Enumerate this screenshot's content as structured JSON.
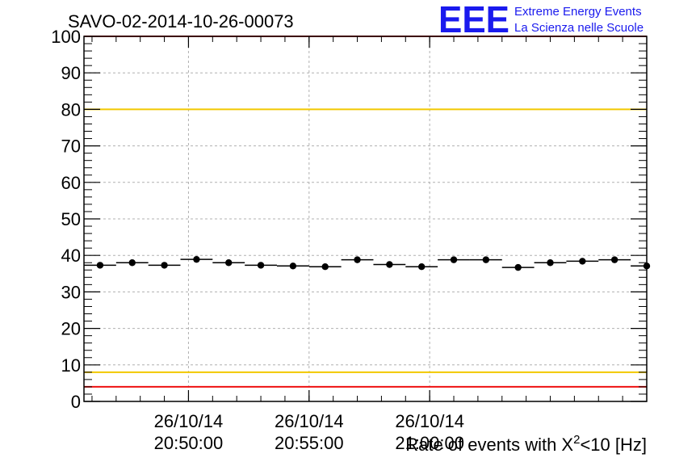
{
  "title": "SAVO-02-2014-10-26-00073",
  "logo": {
    "letters": "EEE",
    "line1": "Extreme Energy Events",
    "line2": "La Scienza nelle Scuole"
  },
  "colors": {
    "logo_blue": "#1a1aee",
    "threshold_red": "#ee1111",
    "threshold_yellow": "#f2c800",
    "grid": "#b0b0b0",
    "markers": "#000000"
  },
  "chart_data": {
    "type": "scatter",
    "title": "SAVO-02-2014-10-26-00073",
    "xlabel_prefix": "Rate of events with X",
    "xlabel_sup": "2",
    "xlabel_suffix": "<10 [Hz]",
    "ylabel": "",
    "ylim": [
      0,
      100
    ],
    "yticks": [
      "0",
      "10",
      "20",
      "30",
      "40",
      "50",
      "60",
      "70",
      "80",
      "90",
      "100"
    ],
    "xlim": [
      "20:45:40",
      "21:09:00"
    ],
    "xticks": [
      {
        "date": "26/10/14",
        "time": "20:50:00",
        "t": "20:50:00"
      },
      {
        "date": "26/10/14",
        "time": "20:55:00",
        "t": "20:55:00"
      },
      {
        "date": "26/10/14",
        "time": "21:00:00",
        "t": "21:00:00"
      }
    ],
    "bin_width_s": 80,
    "x": [
      "20:46:20",
      "20:47:40",
      "20:49:00",
      "20:50:20",
      "20:51:40",
      "20:53:00",
      "20:54:20",
      "20:55:40",
      "20:57:00",
      "20:58:20",
      "20:59:40",
      "21:01:00",
      "21:02:20",
      "21:03:40",
      "21:05:00",
      "21:06:20",
      "21:07:40",
      "21:09:00"
    ],
    "values": [
      37.3,
      38.0,
      37.3,
      38.9,
      38.0,
      37.3,
      37.1,
      36.9,
      38.8,
      37.5,
      36.9,
      38.8,
      38.8,
      36.7,
      38.0,
      38.4,
      38.8,
      37.1
    ],
    "threshold_lines": [
      {
        "y": 100,
        "color": "red"
      },
      {
        "y": 80,
        "color": "yellow"
      },
      {
        "y": 8,
        "color": "yellow"
      },
      {
        "y": 4,
        "color": "red"
      }
    ],
    "grid": true
  }
}
